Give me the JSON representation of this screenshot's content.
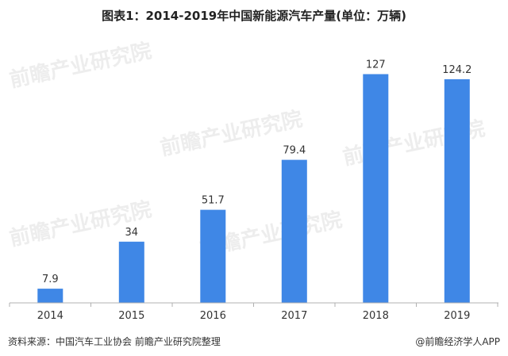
{
  "chart_data": {
    "type": "bar",
    "title": "图表1：2014-2019年中国新能源汽车产量(单位：万辆)",
    "categories": [
      "2014",
      "2015",
      "2016",
      "2017",
      "2018",
      "2019"
    ],
    "values": [
      7.9,
      34,
      51.7,
      79.4,
      127,
      124.2
    ],
    "value_labels": [
      "7.9",
      "34",
      "51.7",
      "79.4",
      "127",
      "124.2"
    ],
    "xlabel": "",
    "ylabel": "",
    "ylim": [
      0,
      140
    ],
    "grid": false,
    "colors": {
      "bar": "#3f87e6"
    }
  },
  "watermark": "前瞻产业研究院",
  "footer": {
    "source": "资料来源：中国汽车工业协会 前瞻产业研究院整理",
    "credit": "@前瞻经济学人APP"
  }
}
